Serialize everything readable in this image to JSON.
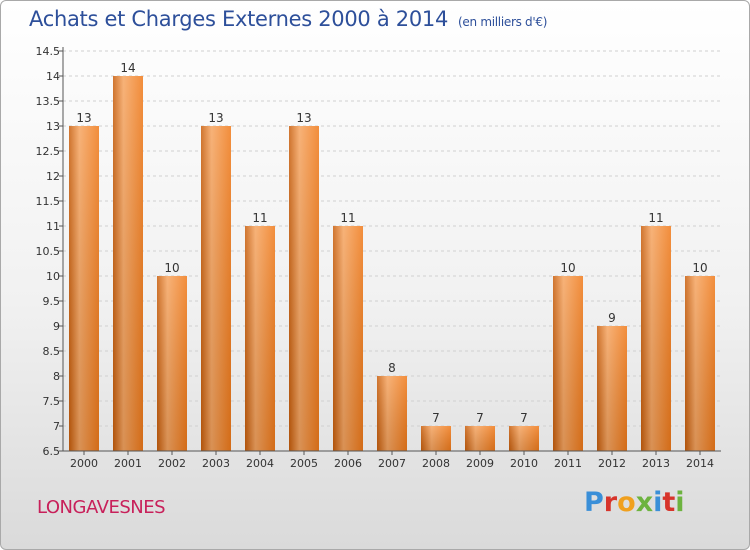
{
  "title": "Achats et Charges Externes 2000 à 2014",
  "unit_note": "(en milliers d'€)",
  "place": "LONGAVESNES",
  "logo": {
    "letters": [
      "P",
      "r",
      "o",
      "x",
      "i",
      "t",
      "i"
    ],
    "colors": [
      "#3a8fd8",
      "#d7342b",
      "#f0a01e",
      "#6db33f",
      "#3a8fd8",
      "#d7342b",
      "#6db33f"
    ]
  },
  "colors": {
    "bar": "#f07a1a",
    "bar_light": "#f6a561",
    "bar_dark": "#c85e0c",
    "axis": "#555555",
    "grid": "#d0d0d0"
  },
  "chart_data": {
    "type": "bar",
    "title": "Achats et Charges Externes 2000 à 2014",
    "subtitle": "(en milliers d'€)",
    "categories": [
      "2000",
      "2001",
      "2002",
      "2003",
      "2004",
      "2005",
      "2006",
      "2007",
      "2008",
      "2009",
      "2010",
      "2011",
      "2012",
      "2013",
      "2014"
    ],
    "values": [
      13,
      14,
      10,
      13,
      11,
      13,
      11,
      8,
      7,
      7,
      7,
      10,
      9,
      11,
      10
    ],
    "value_labels": [
      "13",
      "14",
      "10",
      "13",
      "11",
      "13",
      "11",
      "8",
      "7",
      "7",
      "7",
      "10",
      "9",
      "11",
      "10"
    ],
    "y_ticks": [
      6.5,
      7,
      7.5,
      8,
      8.5,
      9,
      9.5,
      10,
      10.5,
      11,
      11.5,
      12,
      12.5,
      13,
      13.5,
      14,
      14.5
    ],
    "y_tick_labels": [
      "6.5",
      "7",
      "7.5",
      "8",
      "8.5",
      "9",
      "9.5",
      "10",
      "10.5",
      "11",
      "11.5",
      "12",
      "12.5",
      "13",
      "13.5",
      "14",
      "14.5"
    ],
    "ylim": [
      6.5,
      14.5
    ],
    "xlabel": "",
    "ylabel": "",
    "grid": "y-dashed",
    "legend": "none"
  }
}
